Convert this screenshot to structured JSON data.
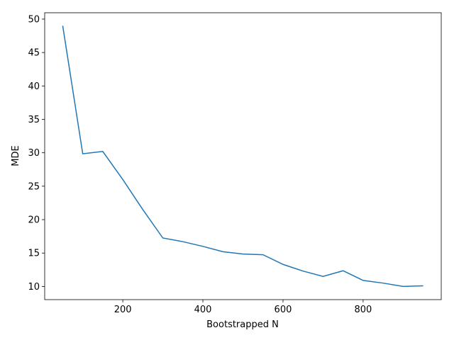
{
  "chart_data": {
    "type": "line",
    "xlabel": "Bootstrapped N",
    "ylabel": "MDE",
    "x": [
      50,
      100,
      150,
      200,
      250,
      300,
      350,
      400,
      450,
      500,
      550,
      600,
      650,
      700,
      750,
      800,
      850,
      900,
      950
    ],
    "series": [
      {
        "color": "#1f77b4",
        "values": [
          49.0,
          29.85,
          30.2,
          26.0,
          21.5,
          17.25,
          16.7,
          16.0,
          15.2,
          14.85,
          14.75,
          13.3,
          12.3,
          11.5,
          12.35,
          10.9,
          10.5,
          10.0,
          10.1
        ]
      }
    ],
    "xlim": [
      5,
      995
    ],
    "ylim": [
      8.03,
      50.95
    ],
    "xticks": [
      200,
      400,
      600,
      800
    ],
    "yticks": [
      10,
      15,
      20,
      25,
      30,
      35,
      40,
      45,
      50
    ]
  }
}
